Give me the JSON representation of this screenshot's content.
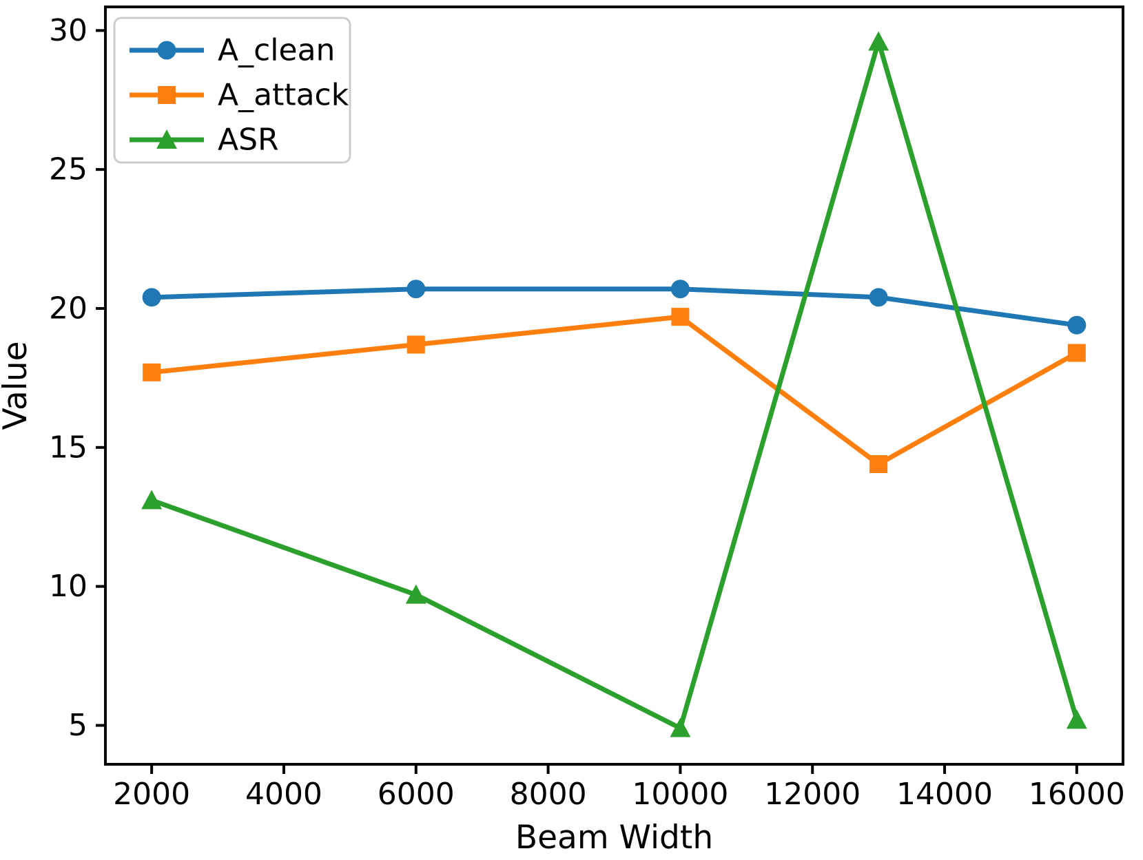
{
  "chart_data": {
    "type": "line",
    "title": "",
    "xlabel": "Beam Width",
    "ylabel": "Value",
    "x": [
      2000,
      6000,
      10000,
      13000,
      16000
    ],
    "series": [
      {
        "name": "A_clean",
        "color": "#1f77b4",
        "marker": "circle",
        "values": [
          20.4,
          20.7,
          20.7,
          20.4,
          19.4
        ]
      },
      {
        "name": "A_attack",
        "color": "#ff7f0e",
        "marker": "square",
        "values": [
          17.7,
          18.7,
          19.7,
          14.4,
          18.4
        ]
      },
      {
        "name": "ASR",
        "color": "#2ca02c",
        "marker": "triangle",
        "values": [
          13.1,
          9.7,
          4.9,
          29.6,
          5.2
        ]
      }
    ],
    "xticks": [
      2000,
      4000,
      6000,
      8000,
      10000,
      12000,
      14000,
      16000
    ],
    "yticks": [
      5,
      10,
      15,
      20,
      25,
      30
    ],
    "xlim": [
      1300,
      16700
    ],
    "ylim": [
      3.6,
      30.85
    ],
    "grid": false,
    "legend_position": "upper left",
    "axis_color": "#000000",
    "background_color": "#ffffff",
    "legend_border_color": "#cccccc"
  }
}
